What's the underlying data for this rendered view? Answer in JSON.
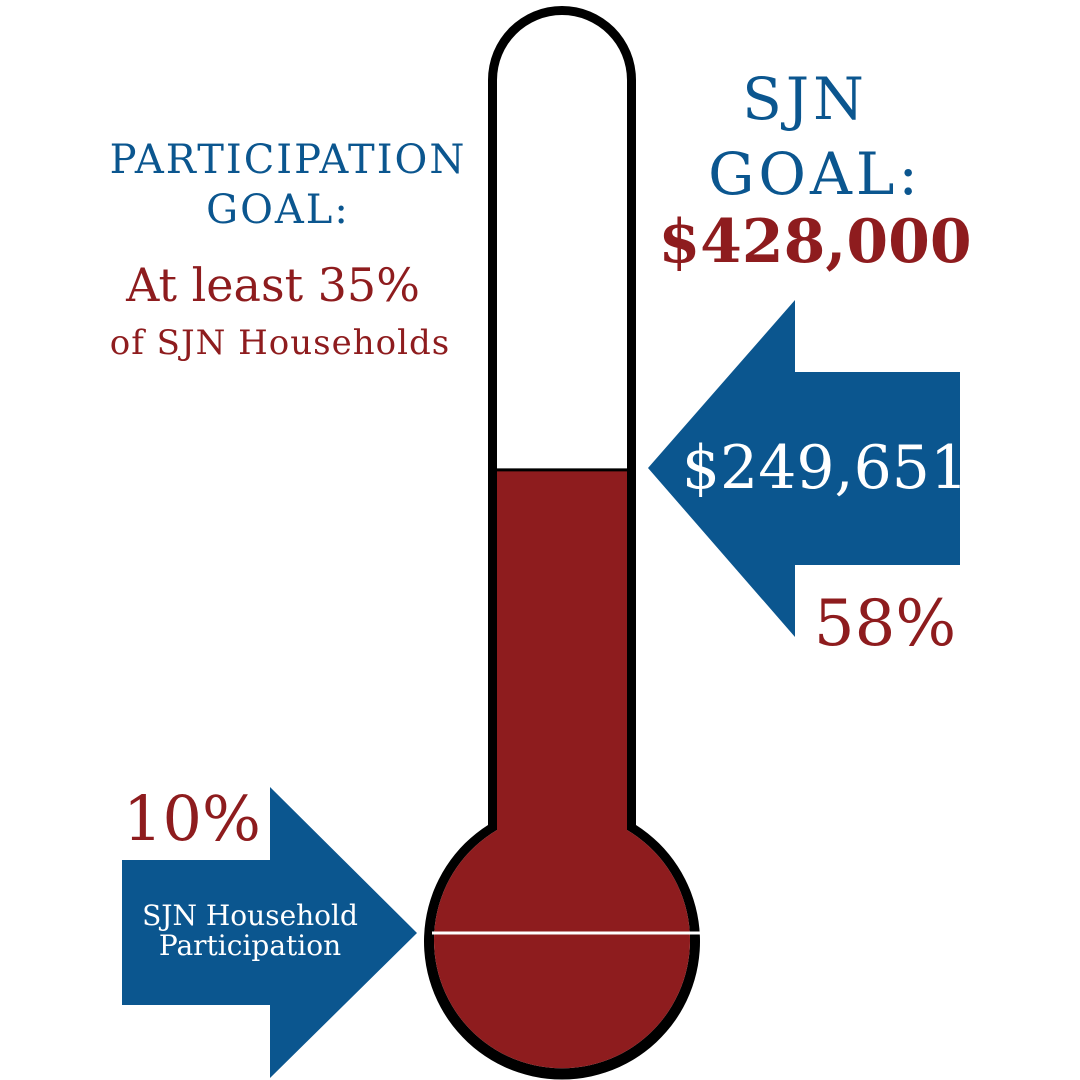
{
  "colors": {
    "blue": "#0b568f",
    "red": "#8e1c1e",
    "outline": "#000000"
  },
  "participation": {
    "heading_line1": "PARTICIPATION",
    "heading_line2": "GOAL:",
    "goal_line1": "At least 35%",
    "goal_line2": "of SJN Households",
    "current_percent": "10%",
    "arrow_label_line1": "SJN Household",
    "arrow_label_line2": "Participation",
    "current_value": 10
  },
  "fundraising": {
    "heading_line1": "SJN",
    "heading_line2": "GOAL:",
    "goal_amount": "$428,000",
    "raised_amount": "$249,651",
    "percent_label": "58%",
    "percent_value": 58
  }
}
